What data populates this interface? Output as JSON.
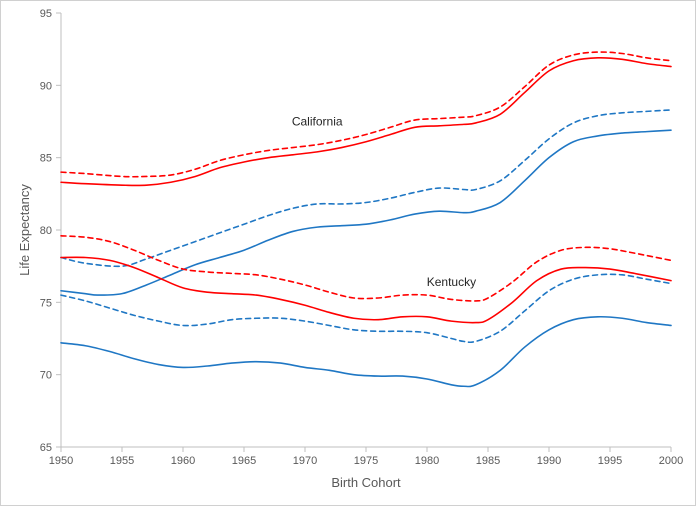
{
  "chart_data": {
    "type": "line",
    "xlabel": "Birth Cohort",
    "ylabel": "Life Expectancy",
    "xlim": [
      1950,
      2000
    ],
    "ylim": [
      65,
      95
    ],
    "x_ticks": [
      "1950",
      "1955",
      "1960",
      "1965",
      "1970",
      "1975",
      "1980",
      "1985",
      "1990",
      "1995",
      "2000"
    ],
    "y_ticks": [
      "65",
      "70",
      "75",
      "80",
      "85",
      "90",
      "95"
    ],
    "grid": false,
    "legend": "none",
    "annotations": [
      {
        "text": "California",
        "x": 1971,
        "y": 87.5
      },
      {
        "text": "Kentucky",
        "x": 1982,
        "y": 76.4
      }
    ],
    "series": [
      {
        "color": "#ff0000",
        "dash": false,
        "group": "California",
        "x": [
          1950,
          1952,
          1955,
          1957,
          1959,
          1961,
          1963,
          1965,
          1967,
          1969,
          1971,
          1973,
          1975,
          1977,
          1979,
          1981,
          1983,
          1984,
          1986,
          1988,
          1990,
          1992,
          1994,
          1996,
          1998,
          2000
        ],
        "y": [
          83.3,
          83.2,
          83.1,
          83.1,
          83.3,
          83.7,
          84.3,
          84.7,
          85.0,
          85.2,
          85.4,
          85.7,
          86.1,
          86.6,
          87.1,
          87.2,
          87.3,
          87.4,
          88.0,
          89.5,
          91.0,
          91.7,
          91.9,
          91.8,
          91.5,
          91.3
        ]
      },
      {
        "color": "#ff0000",
        "dash": true,
        "group": "California",
        "x": [
          1950,
          1952,
          1955,
          1957,
          1959,
          1961,
          1963,
          1965,
          1967,
          1969,
          1971,
          1973,
          1975,
          1977,
          1979,
          1981,
          1983,
          1984,
          1986,
          1988,
          1990,
          1992,
          1994,
          1996,
          1998,
          2000
        ],
        "y": [
          84.0,
          83.9,
          83.7,
          83.7,
          83.8,
          84.2,
          84.8,
          85.2,
          85.5,
          85.7,
          85.9,
          86.2,
          86.6,
          87.1,
          87.6,
          87.7,
          87.8,
          87.9,
          88.5,
          89.9,
          91.4,
          92.1,
          92.3,
          92.2,
          91.9,
          91.7
        ]
      },
      {
        "color": "#1f77c4",
        "dash": false,
        "group": "California",
        "x": [
          1950,
          1952,
          1953,
          1955,
          1957,
          1959,
          1961,
          1963,
          1965,
          1967,
          1969,
          1971,
          1973,
          1975,
          1977,
          1979,
          1981,
          1983,
          1984,
          1986,
          1988,
          1990,
          1992,
          1994,
          1996,
          1998,
          2000
        ],
        "y": [
          75.8,
          75.6,
          75.5,
          75.6,
          76.2,
          76.9,
          77.6,
          78.1,
          78.6,
          79.3,
          79.9,
          80.2,
          80.3,
          80.4,
          80.7,
          81.1,
          81.3,
          81.2,
          81.3,
          81.9,
          83.4,
          85.0,
          86.1,
          86.5,
          86.7,
          86.8,
          86.9
        ]
      },
      {
        "color": "#1f77c4",
        "dash": true,
        "group": "California",
        "x": [
          1950,
          1952,
          1955,
          1957,
          1959,
          1961,
          1963,
          1965,
          1967,
          1969,
          1971,
          1973,
          1975,
          1977,
          1979,
          1981,
          1983,
          1984,
          1986,
          1988,
          1990,
          1992,
          1994,
          1996,
          1998,
          2000
        ],
        "y": [
          78.1,
          77.7,
          77.5,
          78.0,
          78.6,
          79.2,
          79.8,
          80.4,
          81.0,
          81.5,
          81.8,
          81.8,
          81.9,
          82.2,
          82.6,
          82.9,
          82.8,
          82.8,
          83.4,
          84.8,
          86.3,
          87.4,
          87.9,
          88.1,
          88.2,
          88.3
        ]
      },
      {
        "color": "#ff0000",
        "dash": false,
        "group": "Kentucky",
        "x": [
          1950,
          1952,
          1954,
          1956,
          1958,
          1960,
          1962,
          1964,
          1966,
          1968,
          1970,
          1972,
          1974,
          1976,
          1978,
          1980,
          1982,
          1984,
          1985,
          1987,
          1989,
          1991,
          1993,
          1995,
          1997,
          2000
        ],
        "y": [
          78.1,
          78.1,
          77.9,
          77.4,
          76.7,
          76.0,
          75.7,
          75.6,
          75.5,
          75.2,
          74.8,
          74.3,
          73.9,
          73.8,
          74.0,
          74.0,
          73.7,
          73.6,
          73.8,
          75.0,
          76.5,
          77.3,
          77.4,
          77.3,
          77.0,
          76.5
        ]
      },
      {
        "color": "#ff0000",
        "dash": true,
        "group": "Kentucky",
        "x": [
          1950,
          1952,
          1954,
          1956,
          1958,
          1960,
          1962,
          1964,
          1966,
          1968,
          1970,
          1972,
          1974,
          1976,
          1978,
          1980,
          1982,
          1984,
          1985,
          1987,
          1989,
          1991,
          1993,
          1995,
          1997,
          2000
        ],
        "y": [
          79.6,
          79.5,
          79.2,
          78.6,
          77.9,
          77.3,
          77.1,
          77.0,
          76.9,
          76.6,
          76.2,
          75.7,
          75.3,
          75.3,
          75.5,
          75.5,
          75.2,
          75.1,
          75.3,
          76.4,
          77.8,
          78.6,
          78.8,
          78.7,
          78.4,
          77.9
        ]
      },
      {
        "color": "#1f77c4",
        "dash": false,
        "group": "Kentucky",
        "x": [
          1950,
          1952,
          1954,
          1956,
          1958,
          1960,
          1962,
          1964,
          1966,
          1968,
          1970,
          1972,
          1974,
          1976,
          1978,
          1980,
          1982,
          1983,
          1984,
          1986,
          1988,
          1990,
          1992,
          1994,
          1996,
          1998,
          2000
        ],
        "y": [
          72.2,
          72.0,
          71.6,
          71.1,
          70.7,
          70.5,
          70.6,
          70.8,
          70.9,
          70.8,
          70.5,
          70.3,
          70.0,
          69.9,
          69.9,
          69.7,
          69.3,
          69.2,
          69.3,
          70.3,
          71.9,
          73.1,
          73.8,
          74.0,
          73.9,
          73.6,
          73.4
        ]
      },
      {
        "color": "#1f77c4",
        "dash": true,
        "group": "Kentucky",
        "x": [
          1950,
          1952,
          1954,
          1956,
          1958,
          1960,
          1962,
          1964,
          1966,
          1968,
          1970,
          1972,
          1974,
          1976,
          1978,
          1980,
          1982,
          1983,
          1984,
          1986,
          1988,
          1990,
          1992,
          1994,
          1996,
          1998,
          2000
        ],
        "y": [
          75.5,
          75.1,
          74.6,
          74.1,
          73.7,
          73.4,
          73.5,
          73.8,
          73.9,
          73.9,
          73.7,
          73.4,
          73.1,
          73.0,
          73.0,
          72.9,
          72.5,
          72.3,
          72.3,
          73.0,
          74.4,
          75.8,
          76.6,
          76.9,
          76.9,
          76.6,
          76.3
        ]
      }
    ]
  }
}
